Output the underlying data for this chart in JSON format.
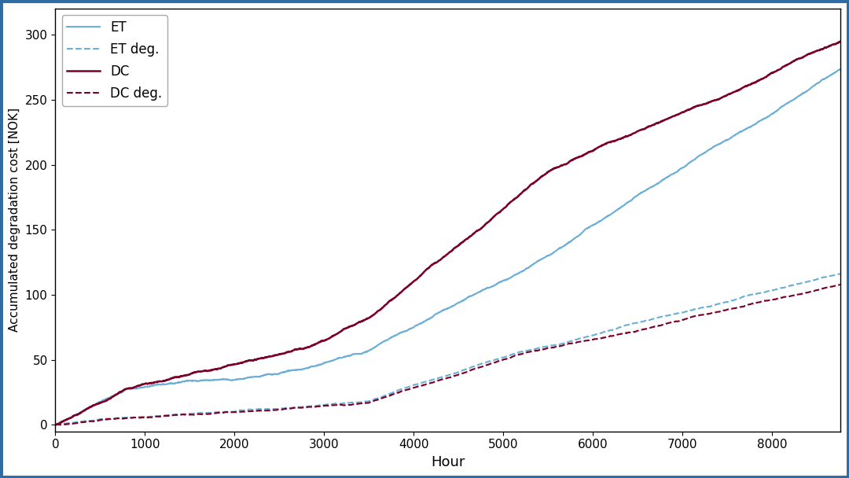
{
  "xlabel": "Hour",
  "ylabel": "Accumulated degradation cost [NOK]",
  "xlim": [
    0,
    8760
  ],
  "ylim": [
    -5,
    320
  ],
  "yticks": [
    0,
    50,
    100,
    150,
    200,
    250,
    300
  ],
  "xticks": [
    0,
    1000,
    2000,
    3000,
    4000,
    5000,
    6000,
    7000,
    8000
  ],
  "color_ET": "#6baed6",
  "color_DC": "#7b0028",
  "background_color": "#ffffff",
  "border_color": "#2e6da4",
  "figsize": [
    10.8,
    6.08
  ],
  "dpi": 100
}
